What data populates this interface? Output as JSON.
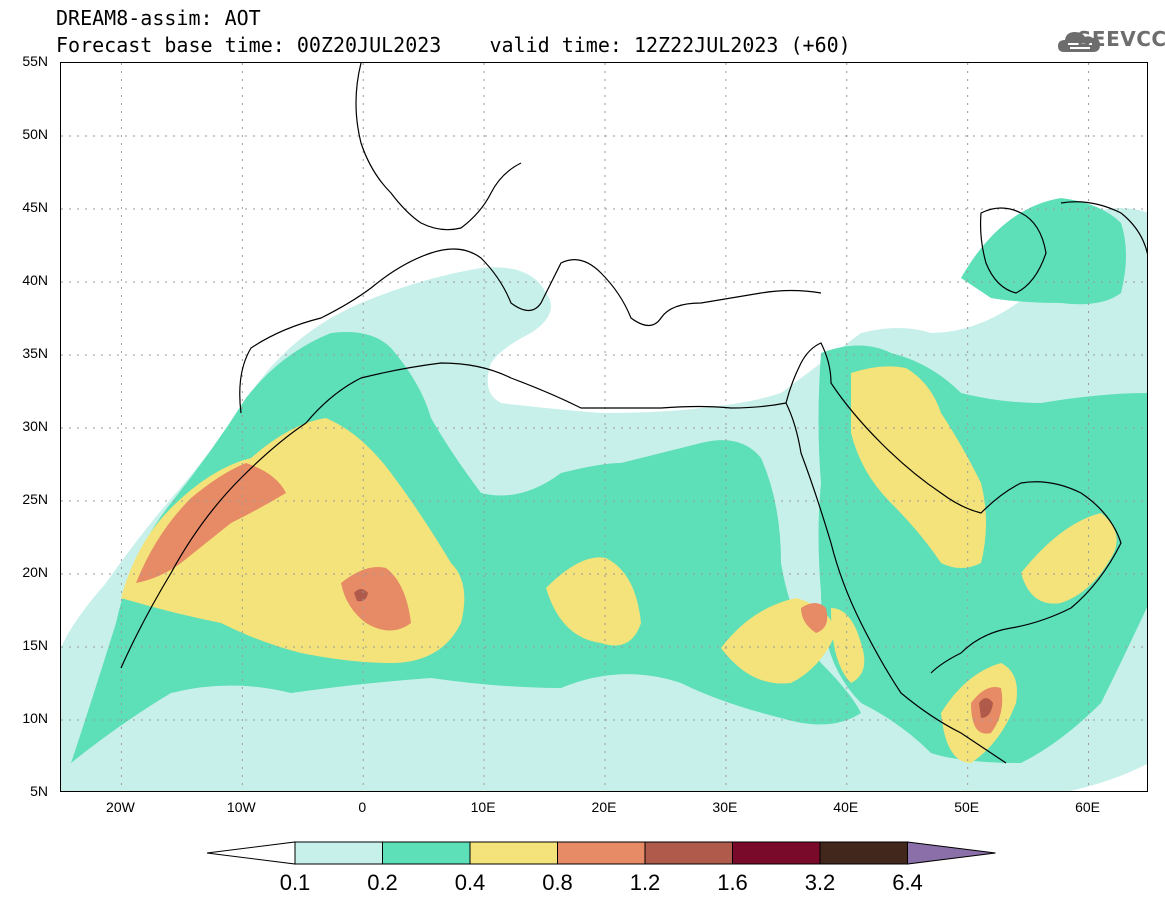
{
  "header": {
    "title_line1": "DREAM8-assim: AOT",
    "title_line2": "Forecast base time: 00Z20JUL2023    valid time: 12Z22JUL2023 (+60)",
    "logo_text": "SEEVCCC"
  },
  "map": {
    "region": "North Africa, Middle East and Europe",
    "projection": "lat-lon",
    "lon_range": [
      -25,
      65
    ],
    "lat_range": [
      5,
      55
    ],
    "lat_labels": [
      "55N",
      "50N",
      "45N",
      "40N",
      "35N",
      "30N",
      "25N",
      "20N",
      "15N",
      "10N",
      "5N"
    ],
    "lon_labels": [
      "20W",
      "10W",
      "0",
      "10E",
      "20E",
      "30E",
      "40E",
      "50E",
      "60E"
    ],
    "field_colors": {
      "c01": "#c8f0ea",
      "c02": "#5ddfb8",
      "c04": "#f4e37a",
      "c08": "#e78a66",
      "c12": "#b05a4b",
      "c16": "#7a0a2a",
      "c32": "#42281c",
      "c64": "#8b6fa8"
    }
  },
  "colorbar": {
    "ticks": [
      "0.1",
      "0.2",
      "0.4",
      "0.8",
      "1.2",
      "1.6",
      "3.2",
      "6.4"
    ],
    "colors": [
      "#c8f0ea",
      "#5ddfb8",
      "#f4e37a",
      "#e78a66",
      "#b05a4b",
      "#7a0a2a",
      "#42281c"
    ],
    "under_color": "#ffffff",
    "over_color": "#8b6fa8"
  }
}
